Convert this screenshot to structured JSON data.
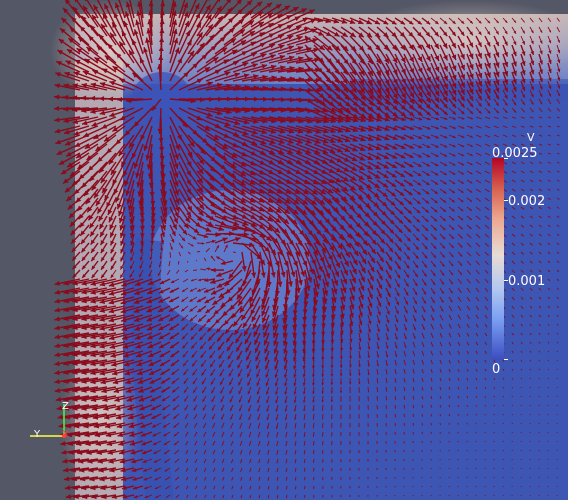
{
  "viewport": {
    "colors": {
      "background": "#545766",
      "field_low": "#3b4cc0",
      "field_high": "#dcc7b8",
      "vector": "#8b0a1c"
    }
  },
  "scalar_bar": {
    "title": "V",
    "max_label": "0.0025",
    "tick_2": "0.002",
    "tick_1": "0.001",
    "min_label": "0",
    "colormap": "blue-to-red diverging"
  },
  "axes": {
    "z_label": "Z",
    "y_label": "Y",
    "x_label": "X"
  }
}
